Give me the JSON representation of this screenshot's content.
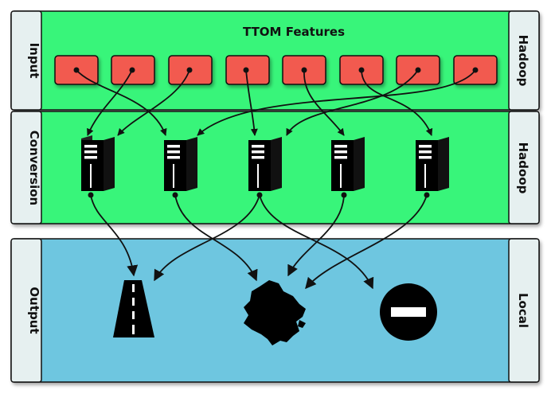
{
  "title": "TTOM Features",
  "rows": {
    "input": {
      "left_label": "Input",
      "right_label": "Hadoop"
    },
    "conversion": {
      "left_label": "Conversion",
      "right_label": "Hadoop"
    },
    "output": {
      "left_label": "Output",
      "right_label": "Local"
    }
  },
  "colors": {
    "hadoop_panel": "#39f57a",
    "local_panel": "#6ec6e0",
    "side_band": "#e6f0f0",
    "feature_box": "#f25a4f",
    "outline": "#111111"
  },
  "icons": {
    "feature": "feature-box",
    "server": "server-icon",
    "road": "road-icon",
    "map": "colombia-map-icon",
    "discard": "no-entry-icon"
  }
}
